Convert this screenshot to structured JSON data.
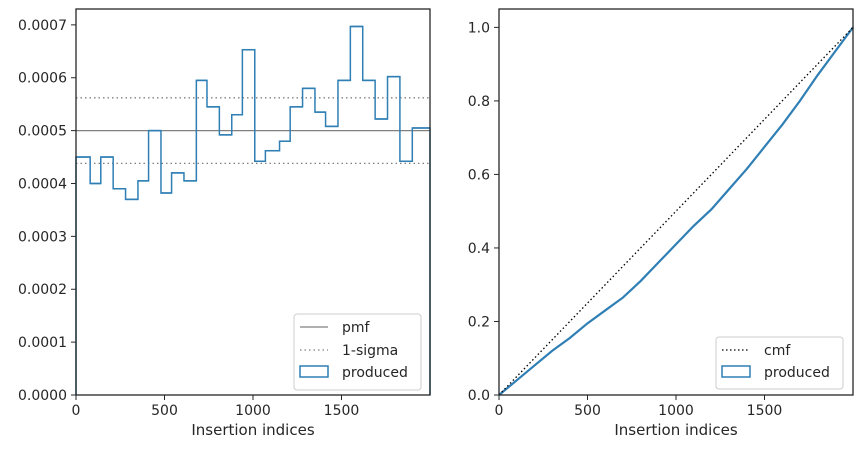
{
  "chart_data": [
    {
      "type": "step",
      "xlabel": "Insertion indices",
      "ylabel": "",
      "xlim": [
        0,
        2000
      ],
      "ylim": [
        0,
        0.00073
      ],
      "xticks": [
        0,
        500,
        1000,
        1500
      ],
      "xtick_labels": [
        "0",
        "500",
        "1000",
        "1500"
      ],
      "yticks": [
        0,
        0.0001,
        0.0002,
        0.0003,
        0.0004,
        0.0005,
        0.0006,
        0.0007
      ],
      "ytick_labels": [
        "0.0000",
        "0.0001",
        "0.0002",
        "0.0003",
        "0.0004",
        "0.0005",
        "0.0006",
        "0.0007"
      ],
      "grid": false,
      "legend_position": "lower right",
      "pmf": {
        "name": "pmf",
        "value": 0.0005,
        "color": "#808080"
      },
      "sigma": {
        "name": "1-sigma",
        "values": [
          0.000438,
          0.000562
        ],
        "color": "#808080"
      },
      "histogram": {
        "name": "produced",
        "color": "#2f7fb5",
        "bin_edges": [
          0,
          80,
          140,
          210,
          280,
          350,
          410,
          480,
          540,
          610,
          680,
          740,
          810,
          880,
          940,
          1010,
          1070,
          1150,
          1210,
          1280,
          1350,
          1410,
          1480,
          1550,
          1620,
          1690,
          1760,
          1830,
          1900,
          1970,
          2000
        ],
        "values": [
          0.00045,
          0.0004,
          0.00045,
          0.00039,
          0.00037,
          0.000405,
          0.0005,
          0.000382,
          0.00042,
          0.000405,
          0.000595,
          0.000545,
          0.000492,
          0.00053,
          0.000653,
          0.000442,
          0.000462,
          0.00048,
          0.000545,
          0.00058,
          0.000535,
          0.000508,
          0.000595,
          0.000697,
          0.000595,
          0.000522,
          0.000602,
          0.000442,
          0.000505,
          0.000505
        ]
      }
    },
    {
      "type": "line",
      "xlabel": "Insertion indices",
      "ylabel": "",
      "xlim": [
        0,
        2000
      ],
      "ylim": [
        0,
        1.05
      ],
      "xticks": [
        0,
        500,
        1000,
        1500
      ],
      "xtick_labels": [
        "0",
        "500",
        "1000",
        "1500"
      ],
      "yticks": [
        0,
        0.2,
        0.4,
        0.6,
        0.8,
        1.0
      ],
      "ytick_labels": [
        "0.0",
        "0.2",
        "0.4",
        "0.6",
        "0.8",
        "1.0"
      ],
      "grid": false,
      "legend_position": "lower right",
      "series": [
        {
          "name": "cmf",
          "style": "dotted",
          "color": "#000000",
          "x": [
            0,
            2000
          ],
          "y": [
            0,
            1.0
          ]
        },
        {
          "name": "produced",
          "style": "solid",
          "color": "#2f7fb5",
          "x": [
            0,
            100,
            200,
            300,
            400,
            500,
            600,
            700,
            800,
            900,
            1000,
            1100,
            1200,
            1300,
            1400,
            1500,
            1600,
            1700,
            1800,
            1900,
            2000
          ],
          "y": [
            0,
            0.04,
            0.08,
            0.12,
            0.155,
            0.195,
            0.23,
            0.265,
            0.31,
            0.36,
            0.41,
            0.46,
            0.505,
            0.56,
            0.615,
            0.675,
            0.735,
            0.8,
            0.87,
            0.935,
            1.0
          ]
        }
      ]
    }
  ]
}
